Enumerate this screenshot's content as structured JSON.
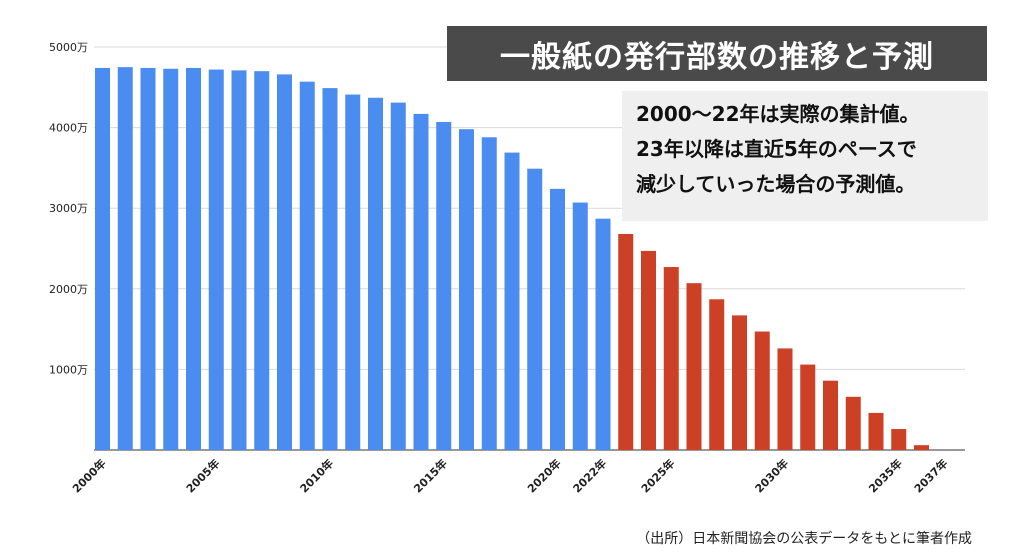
{
  "chart_data": {
    "type": "bar",
    "title": "一般紙の発行部数の推移と予測",
    "note": [
      "2000〜22年は実際の集計値。",
      "23年以降は直近5年のペースで",
      "減少していった場合の予測値。"
    ],
    "source": "（出所）日本新聞協会の公表データをもとに筆者作成",
    "unit": "万",
    "ylim": [
      0,
      5000
    ],
    "yticks": [
      "5000万",
      "4000万",
      "3000万",
      "2000万",
      "1000万"
    ],
    "ytick_values": [
      5000,
      4000,
      3000,
      2000,
      1000
    ],
    "xtick_labels": [
      {
        "year": 2000,
        "label": "2000年"
      },
      {
        "year": 2005,
        "label": "2005年"
      },
      {
        "year": 2010,
        "label": "2010年"
      },
      {
        "year": 2015,
        "label": "2015年"
      },
      {
        "year": 2020,
        "label": "2020年"
      },
      {
        "year": 2022,
        "label": "2022年"
      },
      {
        "year": 2025,
        "label": "2025年"
      },
      {
        "year": 2030,
        "label": "2030年"
      },
      {
        "year": 2035,
        "label": "2035年"
      },
      {
        "year": 2037,
        "label": "2037年"
      }
    ],
    "grid": true,
    "series": [
      {
        "color": "#4a8cf0",
        "x": [
          2000,
          2001,
          2002,
          2003,
          2004,
          2005,
          2006,
          2007,
          2008,
          2009,
          2010,
          2011,
          2012,
          2013,
          2014,
          2015,
          2016,
          2017,
          2018,
          2019,
          2020,
          2021,
          2022
        ],
        "values": [
          4740,
          4750,
          4740,
          4730,
          4740,
          4720,
          4710,
          4700,
          4660,
          4570,
          4490,
          4410,
          4370,
          4310,
          4170,
          4070,
          3980,
          3880,
          3690,
          3490,
          3240,
          3070,
          2870
        ]
      },
      {
        "color": "#cc4125",
        "x": [
          2023,
          2024,
          2025,
          2026,
          2027,
          2028,
          2029,
          2030,
          2031,
          2032,
          2033,
          2034,
          2035,
          2036,
          2037
        ],
        "values": [
          2680,
          2470,
          2270,
          2070,
          1870,
          1670,
          1470,
          1260,
          1060,
          860,
          660,
          460,
          260,
          60,
          0
        ]
      }
    ]
  }
}
